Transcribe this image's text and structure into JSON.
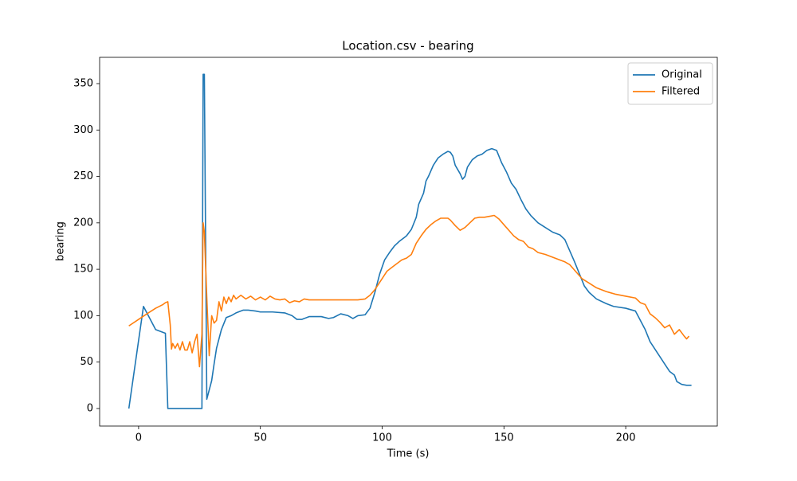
{
  "chart_data": {
    "type": "line",
    "title": "Location.csv - bearing",
    "x_label": "Time (s)",
    "y_label": "bearing",
    "xlim": [
      -16,
      237.6
    ],
    "ylim": [
      -18.9,
      378.3
    ],
    "xticks": [
      0,
      50,
      100,
      150,
      200
    ],
    "yticks": [
      0,
      50,
      100,
      150,
      200,
      250,
      300,
      350
    ],
    "grid": false,
    "legend": "upper right",
    "series": [
      {
        "name": "Original",
        "color": "#1f77b4",
        "x": [
          -4,
          2,
          7,
          11,
          12,
          25,
          26,
          26.5,
          27,
          28,
          30,
          31,
          32,
          34,
          36,
          38,
          40,
          43,
          45,
          48,
          50,
          55,
          60,
          63,
          65,
          67,
          70,
          75,
          78,
          80,
          83,
          86,
          88,
          90,
          93,
          95,
          97,
          99,
          101,
          103,
          105,
          107,
          110,
          112,
          114,
          115,
          117,
          118,
          119,
          121,
          123,
          125,
          127,
          128,
          129,
          130,
          132,
          133,
          134,
          135,
          137,
          139,
          141,
          143,
          145,
          147,
          149,
          151,
          153,
          155,
          157,
          159,
          161,
          164,
          167,
          170,
          173,
          175,
          177,
          179,
          181,
          183,
          185,
          188,
          192,
          195,
          200,
          204,
          206,
          208,
          210,
          213,
          216,
          218,
          220,
          221,
          223,
          225,
          227
        ],
        "values": [
          0,
          110,
          85,
          81,
          0,
          0,
          0,
          360,
          360,
          10,
          30,
          48,
          65,
          85,
          98,
          100,
          103,
          106,
          106,
          105,
          104,
          104,
          103,
          100,
          96,
          96,
          99,
          99,
          97,
          98,
          102,
          100,
          97,
          100,
          101,
          108,
          125,
          145,
          160,
          168,
          175,
          180,
          186,
          193,
          206,
          220,
          232,
          245,
          250,
          262,
          270,
          274,
          277,
          276,
          272,
          262,
          253,
          247,
          250,
          260,
          268,
          272,
          274,
          278,
          280,
          278,
          265,
          255,
          243,
          236,
          225,
          215,
          208,
          200,
          195,
          190,
          187,
          182,
          170,
          158,
          145,
          132,
          125,
          118,
          113,
          110,
          108,
          105,
          95,
          85,
          72,
          60,
          48,
          40,
          36,
          29,
          26,
          25,
          25
        ]
      },
      {
        "name": "Filtered",
        "color": "#ff7f0e",
        "x": [
          -4,
          0,
          4,
          7,
          10,
          11,
          12,
          13,
          13.5,
          14,
          15,
          16,
          17,
          18,
          19,
          20,
          21,
          22,
          23,
          24,
          25,
          26,
          26.5,
          27,
          28,
          29,
          30,
          31,
          32,
          33,
          34,
          35,
          36,
          37,
          38,
          39,
          40,
          42,
          44,
          46,
          48,
          50,
          52,
          54,
          56,
          58,
          60,
          62,
          64,
          66,
          68,
          70,
          75,
          80,
          85,
          90,
          93,
          95,
          97,
          100,
          102,
          104,
          106,
          108,
          110,
          112,
          114,
          116,
          118,
          120,
          122,
          124,
          127,
          128,
          130,
          132,
          134,
          136,
          138,
          140,
          142,
          144,
          146,
          148,
          150,
          152,
          154,
          156,
          158,
          160,
          162,
          164,
          167,
          170,
          173,
          175,
          177,
          180,
          182,
          185,
          188,
          192,
          196,
          200,
          204,
          206,
          208,
          210,
          212,
          214,
          216,
          218,
          220,
          222,
          224,
          225,
          226
        ],
        "values": [
          89,
          96,
          103,
          108,
          112,
          114,
          115,
          90,
          64,
          70,
          65,
          70,
          63,
          72,
          63,
          63,
          72,
          60,
          72,
          80,
          45,
          80,
          200,
          190,
          120,
          57,
          100,
          92,
          95,
          115,
          105,
          120,
          113,
          120,
          115,
          122,
          118,
          122,
          118,
          121,
          117,
          120,
          117,
          121,
          118,
          117,
          118,
          114,
          116,
          115,
          118,
          117,
          117,
          117,
          117,
          117,
          118,
          122,
          128,
          140,
          148,
          152,
          156,
          160,
          162,
          166,
          178,
          186,
          193,
          198,
          202,
          205,
          205,
          203,
          197,
          192,
          195,
          200,
          205,
          206,
          206,
          207,
          208,
          204,
          198,
          192,
          186,
          182,
          180,
          174,
          172,
          168,
          166,
          163,
          160,
          158,
          155,
          146,
          140,
          135,
          130,
          126,
          123,
          121,
          119,
          114,
          112,
          102,
          98,
          93,
          87,
          90,
          80,
          85,
          78,
          75,
          78
        ]
      }
    ]
  }
}
